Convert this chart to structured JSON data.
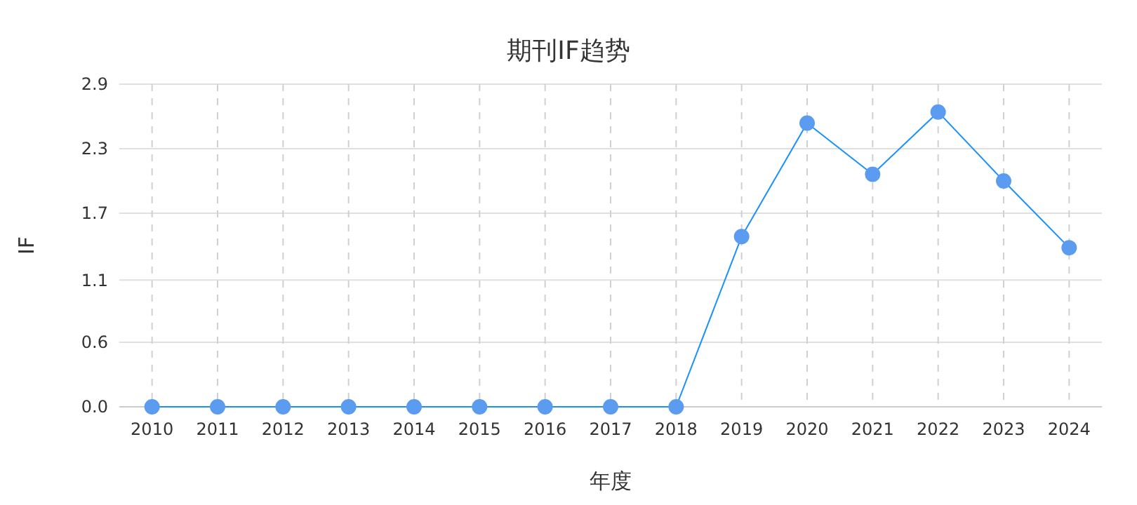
{
  "chart_data": {
    "type": "line",
    "title": "期刊IF趋势",
    "xlabel": "年度",
    "ylabel": "IF",
    "categories": [
      "2010",
      "2011",
      "2012",
      "2013",
      "2014",
      "2015",
      "2016",
      "2017",
      "2018",
      "2019",
      "2020",
      "2021",
      "2022",
      "2023",
      "2024"
    ],
    "series": [
      {
        "color": "#1890ff",
        "values": [
          0,
          0,
          0,
          0,
          0,
          0,
          0,
          0,
          0,
          1.53,
          2.55,
          2.09,
          2.65,
          2.03,
          1.43
        ]
      }
    ],
    "ylim": [
      0,
      2.9
    ],
    "yticks": [
      {
        "value": 0,
        "label": "0.0"
      },
      {
        "value": 0.58,
        "label": "0.6"
      },
      {
        "value": 1.14,
        "label": "1.1"
      },
      {
        "value": 1.74,
        "label": "1.7"
      },
      {
        "value": 2.32,
        "label": "2.3"
      },
      {
        "value": 2.9,
        "label": "2.9"
      }
    ],
    "grid": true,
    "marker": "circle",
    "line_style": "solid"
  }
}
